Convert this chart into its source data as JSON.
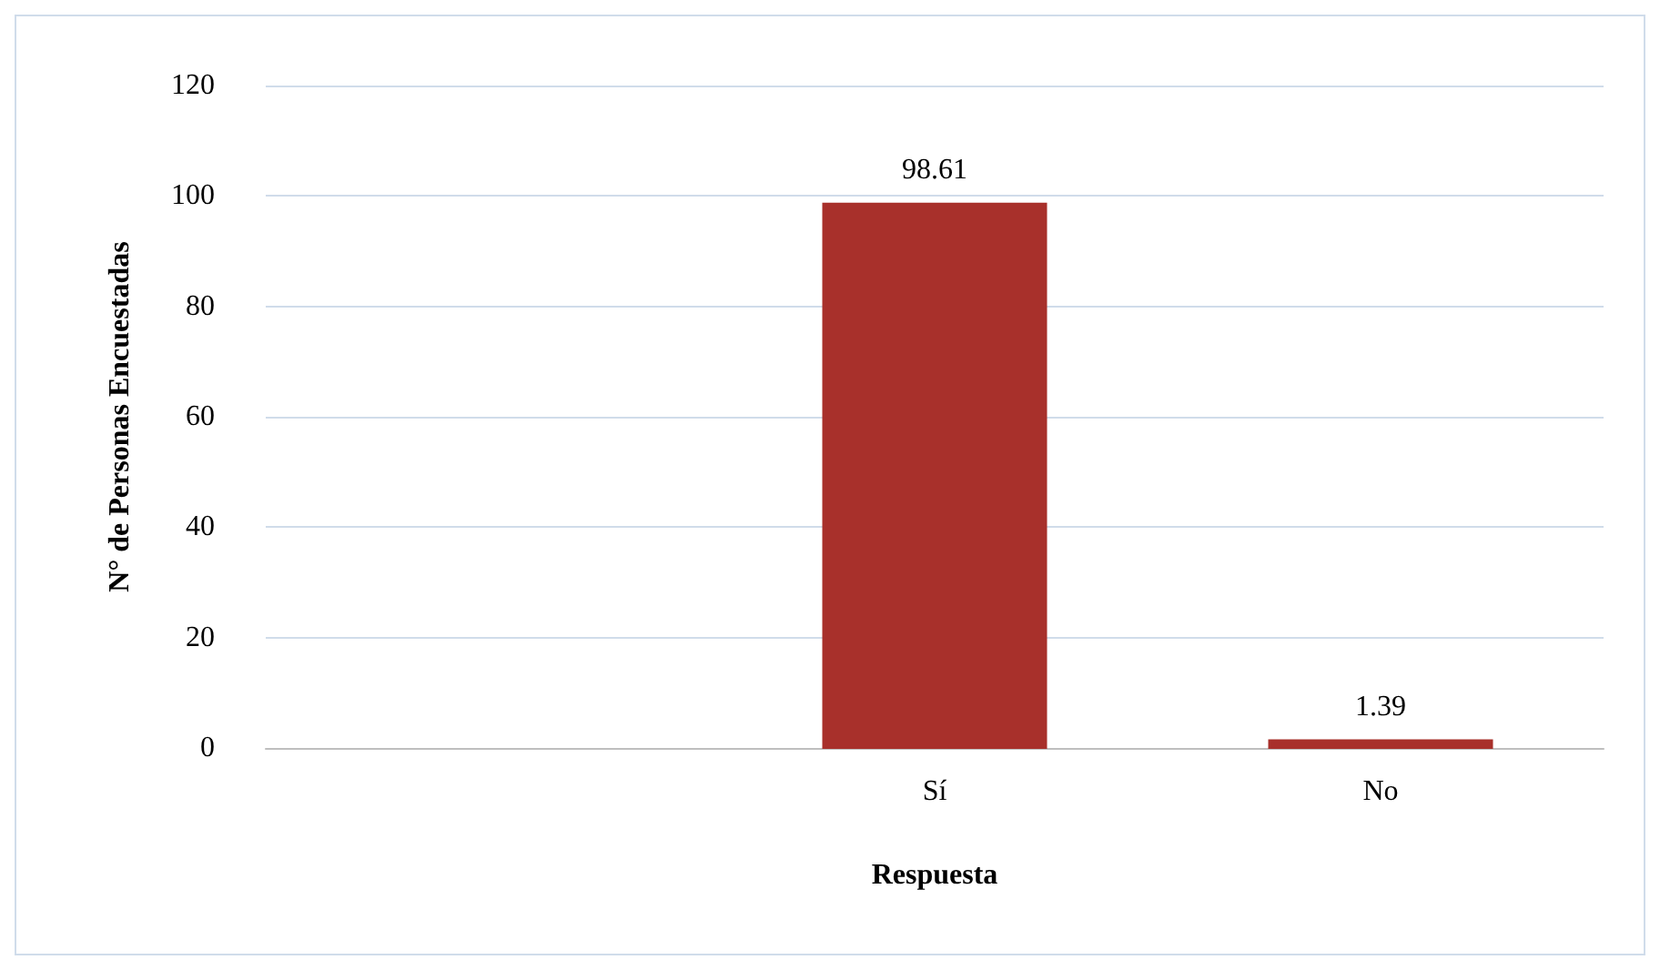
{
  "chart_data": {
    "type": "bar",
    "xlabel": "Respuesta",
    "ylabel": "N° de Personas Encuestadas",
    "categories": [
      null,
      "Sí",
      "No"
    ],
    "values": [
      null,
      98.61,
      1.39
    ],
    "color": "#a8302b",
    "ylim": [
      0,
      120
    ],
    "yticks": [
      0,
      20,
      40,
      60,
      80,
      100,
      120
    ],
    "grid": "y",
    "data_labels": true
  }
}
